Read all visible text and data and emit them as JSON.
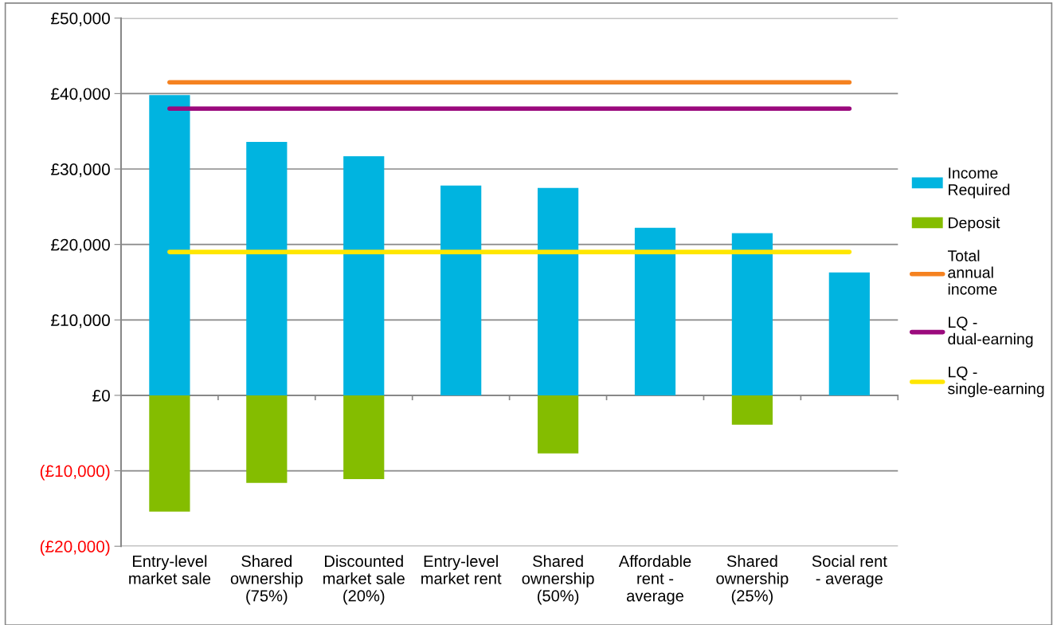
{
  "chart_data": {
    "type": "bar",
    "stacked": true,
    "categories": [
      "Entry-level market sale",
      "Shared ownership (75%)",
      "Discounted market sale (20%)",
      "Entry-level market rent",
      "Shared ownership (50%)",
      "Affordable rent - average",
      "Shared ownership (25%)",
      "Social rent - average"
    ],
    "series": [
      {
        "name": "Income Required",
        "color": "#00b4e0",
        "values": [
          39800,
          33600,
          31700,
          27800,
          27500,
          22200,
          21500,
          16300
        ]
      },
      {
        "name": "Deposit",
        "color": "#84bd00",
        "values": [
          -15400,
          -11600,
          -11100,
          null,
          -7700,
          null,
          -3900,
          null
        ]
      },
      {
        "name": "Total annual income",
        "type": "line",
        "color": "#f58220",
        "values": [
          41500,
          41500,
          41500,
          41500,
          41500,
          41500,
          41500,
          41500
        ]
      },
      {
        "name": "LQ - dual-earning",
        "type": "line",
        "color": "#9b0a7d",
        "values": [
          38000,
          38000,
          38000,
          38000,
          38000,
          38000,
          38000,
          38000
        ]
      },
      {
        "name": "LQ - single-earning",
        "type": "line",
        "color": "#ffe600",
        "values": [
          19000,
          19000,
          19000,
          19000,
          19000,
          19000,
          19000,
          19000
        ]
      }
    ],
    "ylim": [
      -20000,
      50000
    ],
    "yticks": [
      {
        "value": -20000,
        "label": "(£20,000)"
      },
      {
        "value": -10000,
        "label": "(£10,000)"
      },
      {
        "value": 0,
        "label": "£0"
      },
      {
        "value": 10000,
        "label": "£10,000"
      },
      {
        "value": 20000,
        "label": "£20,000"
      },
      {
        "value": 30000,
        "label": "£30,000"
      },
      {
        "value": 40000,
        "label": "£40,000"
      },
      {
        "value": 50000,
        "label": "£50,000"
      }
    ],
    "grid": "y",
    "legend": "right",
    "marker": "none",
    "line_style": "solid"
  }
}
